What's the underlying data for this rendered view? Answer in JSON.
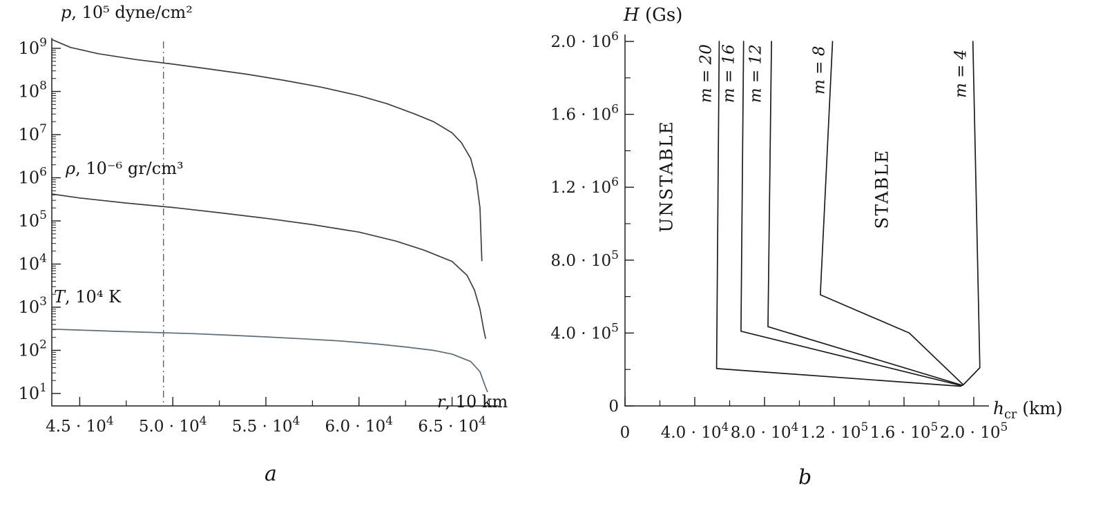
{
  "figure": {
    "background": "#ffffff",
    "axis_color": "#1a1a1a"
  },
  "labels": {
    "panel_a": {
      "caption": "a",
      "x_var": "r",
      "x_rest": ", 10 km"
    },
    "panel_b": {
      "caption": "b",
      "y_var": "H",
      "y_rest": " (Gs)",
      "x_var": "h",
      "x_sub": "cr",
      "x_rest": " (km)",
      "region_unstable": "UNSTABLE",
      "region_stable": "STABLE"
    }
  },
  "chart_data": [
    {
      "id": "panel-a",
      "type": "line",
      "x_scale": "linear",
      "y_scale": "log",
      "xlabel": "r, 10 km",
      "xlim": [
        43500,
        67500
      ],
      "y_exponent_range": [
        1,
        9
      ],
      "x_major_ticks": [
        45000,
        50000,
        55000,
        60000,
        65000
      ],
      "x_major_labels": [
        "4.5 · 10^4",
        "5.0 · 10^4",
        "5.5 · 10^4",
        "6.0 · 10^4",
        "6.5 · 10^4"
      ],
      "x_minor_ticks": [
        47500,
        52500,
        57500,
        62500,
        67000
      ],
      "y_major_ticks_exp": [
        9,
        8,
        7,
        6,
        5,
        4,
        3,
        2,
        1
      ],
      "y_major_labels": [
        "10^9",
        "10^8",
        "10^7",
        "10^6",
        "10^5",
        "10^4",
        "10^3",
        "10^2",
        "10^1"
      ],
      "reference_line_x": 49500,
      "series": [
        {
          "name_var": "p",
          "name_rest": ", 10⁵ dyne/cm²",
          "color": "#413d3b",
          "points": [
            [
              43500,
              1600000000.0
            ],
            [
              44500,
              1050000000.0
            ],
            [
              46000,
              750000000.0
            ],
            [
              48000,
              550000000.0
            ],
            [
              50000,
              430000000.0
            ],
            [
              52000,
              330000000.0
            ],
            [
              54000,
              250000000.0
            ],
            [
              56000,
              180000000.0
            ],
            [
              58000,
              125000000.0
            ],
            [
              60000,
              80000000.0
            ],
            [
              61500,
              52000000.0
            ],
            [
              63000,
              30000000.0
            ],
            [
              64000,
              20000000.0
            ],
            [
              65000,
              11000000.0
            ],
            [
              65500,
              6500000.0
            ],
            [
              66000,
              2800000.0
            ],
            [
              66300,
              900000.0
            ],
            [
              66500,
              200000.0
            ],
            [
              66600,
              12000.0
            ]
          ]
        },
        {
          "name_var": "ρ",
          "name_rest": ", 10⁻⁶ gr/cm³",
          "color": "#413d3b",
          "points": [
            [
              43500,
              420000.0
            ],
            [
              45000,
              340000.0
            ],
            [
              47500,
              260000.0
            ],
            [
              50000,
              205000.0
            ],
            [
              52500,
              155000.0
            ],
            [
              55000,
              115000.0
            ],
            [
              57500,
              82000.0
            ],
            [
              60000,
              55000.0
            ],
            [
              62000,
              34000.0
            ],
            [
              63500,
              21000.0
            ],
            [
              65000,
              11500.0
            ],
            [
              65800,
              5500.0
            ],
            [
              66200,
              2500.0
            ],
            [
              66500,
              900.0
            ],
            [
              66700,
              300.0
            ],
            [
              66800,
              190.0
            ]
          ]
        },
        {
          "name_var": "T",
          "name_rest": ", 10⁴ K",
          "color": "#5d6b76",
          "points": [
            [
              43500,
              310.0
            ],
            [
              45000,
              295.0
            ],
            [
              47000,
              275.0
            ],
            [
              49000,
              260.0
            ],
            [
              51000,
              245.0
            ],
            [
              53000,
              225.0
            ],
            [
              55000,
              205.0
            ],
            [
              57000,
              185.0
            ],
            [
              59000,
              165.0
            ],
            [
              61000,
              140.0
            ],
            [
              62500,
              120.0
            ],
            [
              64000,
              100.0
            ],
            [
              65000,
              82.0
            ],
            [
              66000,
              55.0
            ],
            [
              66500,
              32.0
            ],
            [
              66800,
              14.0
            ],
            [
              66900,
              11.0
            ]
          ]
        }
      ]
    },
    {
      "id": "panel-b",
      "type": "line",
      "x_scale": "linear",
      "y_scale": "linear",
      "xlabel": "h_cr (km)",
      "ylabel": "H (Gs)",
      "xlim": [
        0,
        200000
      ],
      "ylim": [
        0,
        2000000
      ],
      "x_major_ticks": [
        0,
        40000,
        80000,
        120000,
        160000,
        200000
      ],
      "x_major_labels": [
        "0",
        "4.0 · 10^4",
        "8.0 · 10^4",
        "1.2 · 10^5",
        "1.6 · 10^5",
        "2.0 · 10^5"
      ],
      "x_minor_ticks": [
        20000,
        60000,
        100000,
        140000,
        180000
      ],
      "y_major_ticks": [
        0,
        400000,
        800000,
        1200000,
        1600000,
        2000000
      ],
      "y_major_labels": [
        "0",
        "4.0 · 10^5",
        "8.0 · 10^5",
        "1.2 · 10^6",
        "1.6 · 10^6",
        "2.0 · 10^6"
      ],
      "y_minor_ticks": [
        200000,
        600000,
        1000000,
        1400000,
        1800000
      ],
      "regions": [
        "UNSTABLE",
        "STABLE"
      ],
      "series": [
        {
          "name": "m = 20",
          "color": "#1c1c1c",
          "points": [
            [
              54000,
              2000000
            ],
            [
              52500,
              205000
            ],
            [
              192500,
              108000
            ]
          ]
        },
        {
          "name": "m = 16",
          "color": "#1c1c1c",
          "points": [
            [
              68000,
              2000000
            ],
            [
              66500,
              410000
            ],
            [
              193000,
              111000
            ]
          ]
        },
        {
          "name": "m = 12",
          "color": "#1c1c1c",
          "points": [
            [
              84000,
              2000000
            ],
            [
              82000,
              435000
            ],
            [
              193500,
              113000
            ]
          ]
        },
        {
          "name": "m = 8",
          "color": "#1c1c1c",
          "points": [
            [
              119000,
              2000000
            ],
            [
              112000,
              610000
            ],
            [
              163000,
              400000
            ],
            [
              194000,
              116000
            ]
          ]
        },
        {
          "name": "m = 4",
          "color": "#1c1c1c",
          "points": [
            [
              199500,
              2000000
            ],
            [
              203500,
              210000
            ],
            [
              194000,
              116000
            ]
          ]
        }
      ]
    }
  ]
}
